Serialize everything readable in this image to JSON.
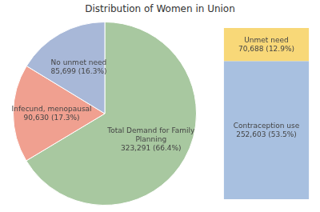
{
  "chart_data": [
    {
      "type": "pie",
      "title": "Distribution of Women in Union",
      "categories": [
        "Total Demand for Family\nPlanning\n323,291 (66.4%)",
        "Infecund, menopausal\n90,630 (17.3%)",
        "No unmet need\n85,699 (16.3%)"
      ],
      "values": [
        66.4,
        17.3,
        16.3
      ],
      "colors": [
        "#a8c8a0",
        "#f0a090",
        "#a8b8d8"
      ]
    },
    {
      "type": "bar",
      "stacked": true,
      "categories": [
        null
      ],
      "series": [
        {
          "name": "Contraception use\n252,603 (53.5%)",
          "color": "#a8c0e0",
          "values": [
            53.5
          ]
        },
        {
          "name": "Unmet need\n70,688 (12.9%)",
          "color": "#f8d878",
          "values": [
            12.9
          ]
        }
      ],
      "ylim": [
        0,
        66.4
      ],
      "tick_labels": false
    }
  ]
}
